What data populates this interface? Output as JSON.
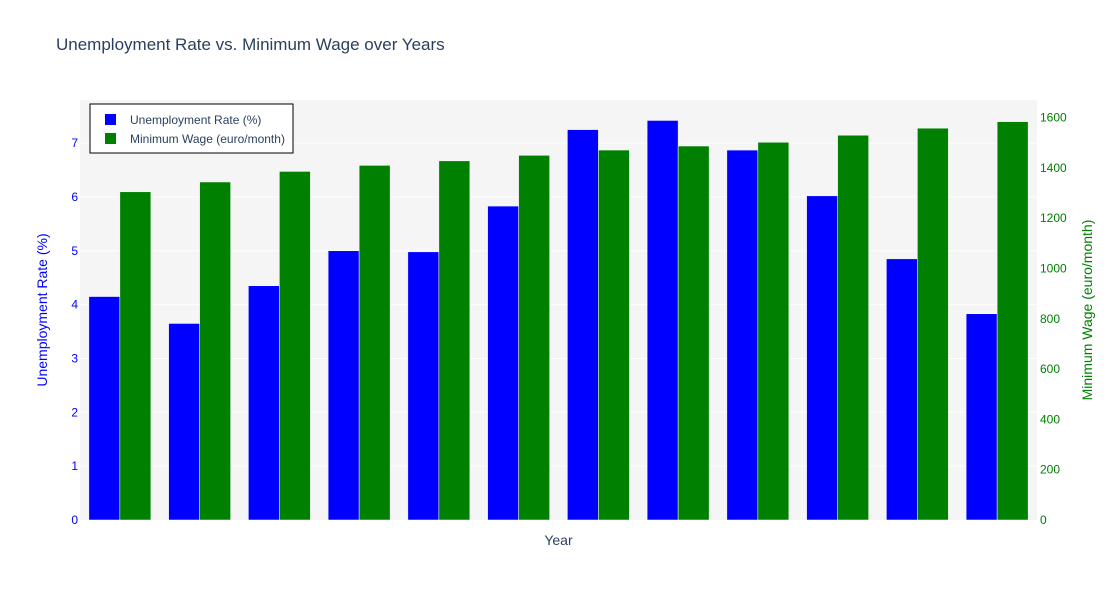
{
  "chart_data": {
    "type": "bar",
    "title": "Unemployment Rate vs. Minimum Wage over Years",
    "xlabel": "Year",
    "categories": [
      "",
      "",
      "",
      "",
      "",
      "",
      "",
      "",
      "",
      "",
      "",
      ""
    ],
    "series": [
      {
        "name": "Unemployment Rate (%)",
        "axis": "left",
        "color": "#0000ff",
        "values": [
          4.15,
          3.65,
          4.35,
          5.0,
          4.98,
          5.83,
          7.25,
          7.42,
          6.87,
          6.02,
          4.85,
          3.83
        ]
      },
      {
        "name": "Minimum Wage (euro/month)",
        "axis": "right",
        "color": "#008000",
        "values": [
          1305,
          1344,
          1386,
          1410,
          1428,
          1450,
          1471,
          1487,
          1502,
          1530,
          1558,
          1584
        ]
      }
    ],
    "y_left": {
      "label": "Unemployment Rate (%)",
      "range": [
        0,
        7.8
      ],
      "ticks": [
        0,
        1,
        2,
        3,
        4,
        5,
        6,
        7
      ],
      "color": "#0000ff"
    },
    "y_right": {
      "label": "Minimum Wage (euro/month)",
      "range": [
        0,
        1670
      ],
      "ticks": [
        0,
        200,
        400,
        600,
        800,
        1000,
        1200,
        1400,
        1600
      ],
      "color": "#008000"
    },
    "grid": true,
    "legend_placement": "top-left"
  }
}
